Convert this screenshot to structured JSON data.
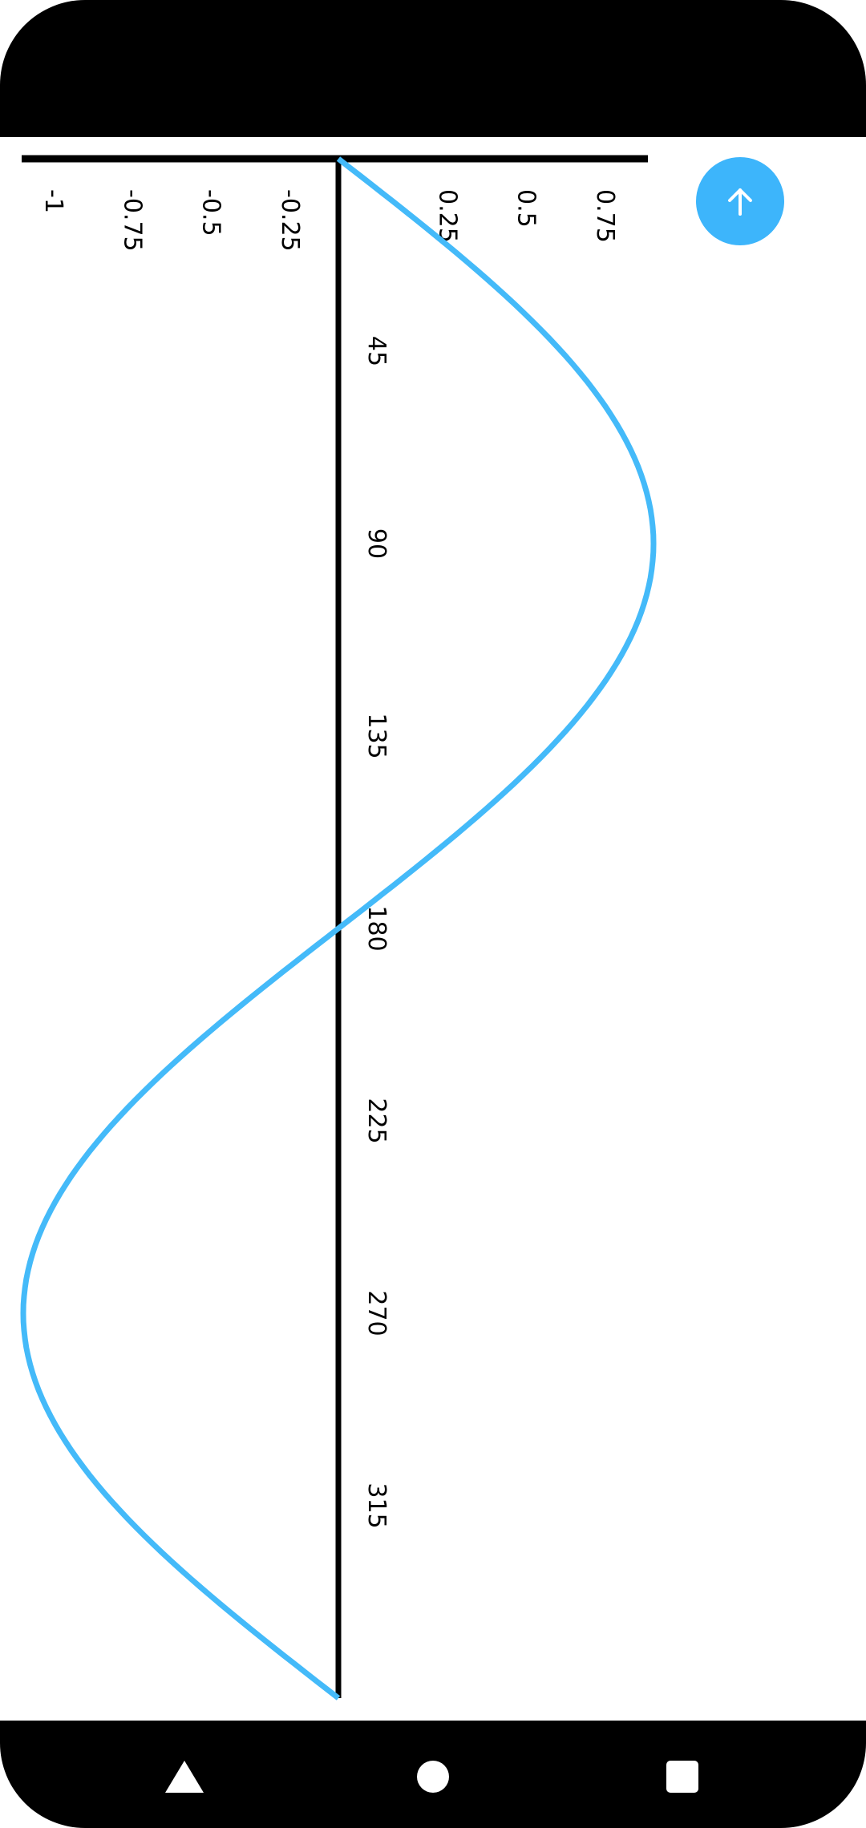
{
  "colors": {
    "series": "#44baf9",
    "axis": "#000000",
    "fab": "#3db5fb",
    "bars": "#000000"
  },
  "fab": {
    "icon": "arrow-up-icon"
  },
  "nav": {
    "back_icon": "triangle-back-icon",
    "home_icon": "circle-home-icon",
    "recents_icon": "square-recents-icon"
  },
  "chart_data": {
    "type": "line",
    "title": "",
    "xlabel": "",
    "ylabel": "",
    "orientation": "rotated-90-clockwise",
    "x_ticks": [
      45,
      90,
      135,
      180,
      225,
      270,
      315
    ],
    "y_ticks": [
      -1,
      -0.75,
      -0.5,
      -0.25,
      0.25,
      0.5,
      0.75
    ],
    "y_tick_labels": [
      "-1",
      "-0.75",
      "-0.5",
      "-0.25",
      "0.25",
      "0.5",
      "0.75"
    ],
    "xlim": [
      0,
      360
    ],
    "ylim": [
      -1,
      1
    ],
    "grid": false,
    "series": [
      {
        "function": "sin(x degrees)",
        "x": [
          0,
          15,
          30,
          45,
          60,
          75,
          90,
          105,
          120,
          135,
          150,
          165,
          180,
          195,
          210,
          225,
          240,
          255,
          270,
          285,
          300,
          315,
          330,
          345,
          360
        ],
        "y": [
          0,
          0.259,
          0.5,
          0.707,
          0.866,
          0.966,
          1,
          0.966,
          0.866,
          0.707,
          0.5,
          0.259,
          0,
          -0.259,
          -0.5,
          -0.707,
          -0.866,
          -0.966,
          -1,
          -0.966,
          -0.866,
          -0.707,
          -0.5,
          -0.259,
          0
        ]
      }
    ]
  }
}
